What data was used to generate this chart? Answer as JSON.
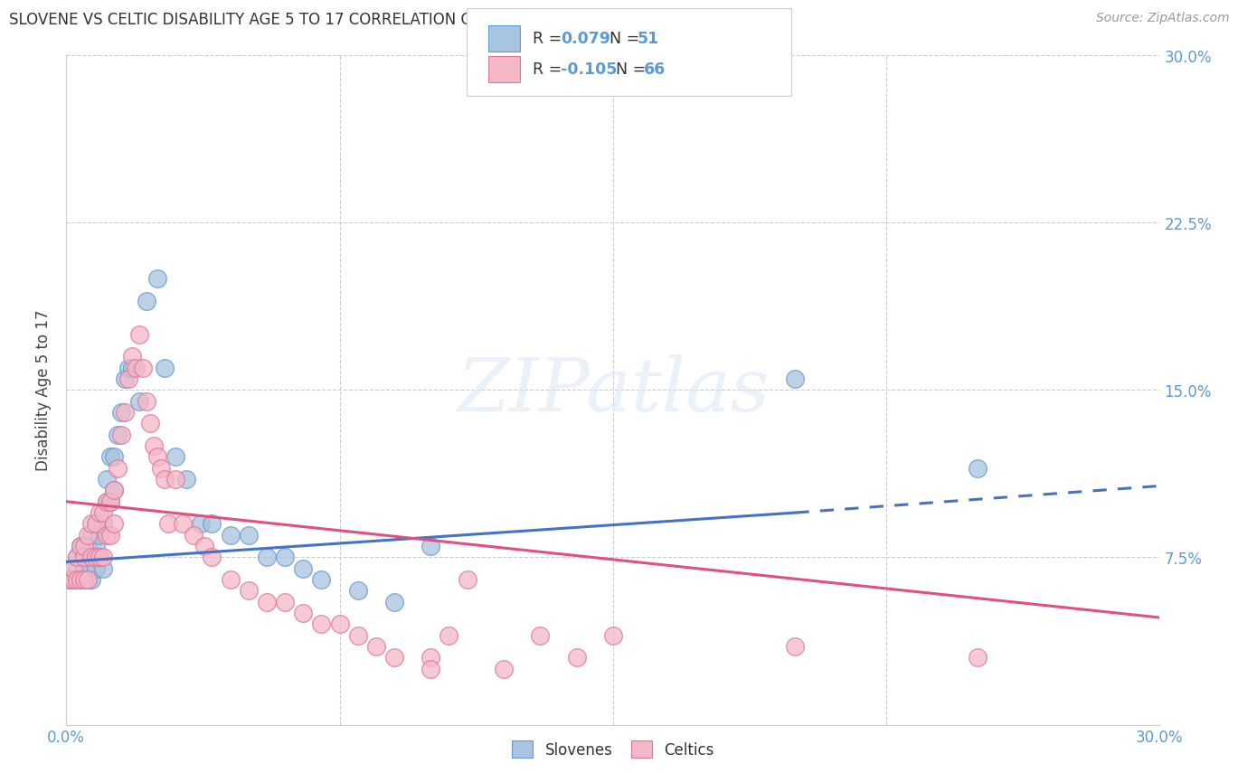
{
  "title": "SLOVENE VS CELTIC DISABILITY AGE 5 TO 17 CORRELATION CHART",
  "source": "Source: ZipAtlas.com",
  "ylabel": "Disability Age 5 to 17",
  "xlim": [
    0.0,
    0.3
  ],
  "ylim": [
    0.0,
    0.3
  ],
  "slovene_color": "#a8c4e0",
  "celtic_color": "#f4b8c8",
  "slovene_edge": "#6699cc",
  "celtic_edge": "#dd7799",
  "trend_slovene_color": "#4472c4",
  "trend_celtic_color": "#e05080",
  "tick_color": "#5b9bd5",
  "R_slovene": 0.079,
  "N_slovene": 51,
  "R_celtic": -0.105,
  "N_celtic": 66,
  "watermark": "ZIPatlas",
  "slovene_points_x": [
    0.001,
    0.002,
    0.003,
    0.003,
    0.004,
    0.004,
    0.005,
    0.005,
    0.005,
    0.006,
    0.006,
    0.007,
    0.007,
    0.007,
    0.008,
    0.008,
    0.008,
    0.009,
    0.009,
    0.01,
    0.01,
    0.011,
    0.011,
    0.012,
    0.012,
    0.013,
    0.013,
    0.014,
    0.015,
    0.016,
    0.017,
    0.018,
    0.02,
    0.022,
    0.025,
    0.027,
    0.03,
    0.033,
    0.037,
    0.04,
    0.045,
    0.05,
    0.055,
    0.06,
    0.065,
    0.07,
    0.08,
    0.09,
    0.1,
    0.2,
    0.25
  ],
  "slovene_points_y": [
    0.065,
    0.065,
    0.07,
    0.075,
    0.065,
    0.08,
    0.065,
    0.07,
    0.075,
    0.065,
    0.08,
    0.065,
    0.075,
    0.085,
    0.07,
    0.08,
    0.09,
    0.075,
    0.085,
    0.07,
    0.09,
    0.1,
    0.11,
    0.1,
    0.12,
    0.105,
    0.12,
    0.13,
    0.14,
    0.155,
    0.16,
    0.16,
    0.145,
    0.19,
    0.2,
    0.16,
    0.12,
    0.11,
    0.09,
    0.09,
    0.085,
    0.085,
    0.075,
    0.075,
    0.07,
    0.065,
    0.06,
    0.055,
    0.08,
    0.155,
    0.115
  ],
  "celtic_points_x": [
    0.001,
    0.002,
    0.002,
    0.003,
    0.003,
    0.004,
    0.004,
    0.005,
    0.005,
    0.005,
    0.006,
    0.006,
    0.007,
    0.007,
    0.008,
    0.008,
    0.009,
    0.009,
    0.01,
    0.01,
    0.011,
    0.011,
    0.012,
    0.012,
    0.013,
    0.013,
    0.014,
    0.015,
    0.016,
    0.017,
    0.018,
    0.019,
    0.02,
    0.021,
    0.022,
    0.023,
    0.024,
    0.025,
    0.026,
    0.027,
    0.028,
    0.03,
    0.032,
    0.035,
    0.038,
    0.04,
    0.045,
    0.05,
    0.055,
    0.06,
    0.065,
    0.07,
    0.075,
    0.08,
    0.085,
    0.09,
    0.1,
    0.105,
    0.11,
    0.12,
    0.13,
    0.14,
    0.25,
    0.2,
    0.15,
    0.1
  ],
  "celtic_points_y": [
    0.065,
    0.065,
    0.07,
    0.065,
    0.075,
    0.065,
    0.08,
    0.065,
    0.075,
    0.08,
    0.065,
    0.085,
    0.075,
    0.09,
    0.075,
    0.09,
    0.075,
    0.095,
    0.075,
    0.095,
    0.085,
    0.1,
    0.085,
    0.1,
    0.09,
    0.105,
    0.115,
    0.13,
    0.14,
    0.155,
    0.165,
    0.16,
    0.175,
    0.16,
    0.145,
    0.135,
    0.125,
    0.12,
    0.115,
    0.11,
    0.09,
    0.11,
    0.09,
    0.085,
    0.08,
    0.075,
    0.065,
    0.06,
    0.055,
    0.055,
    0.05,
    0.045,
    0.045,
    0.04,
    0.035,
    0.03,
    0.03,
    0.04,
    0.065,
    0.025,
    0.04,
    0.03,
    0.03,
    0.035,
    0.04,
    0.025
  ],
  "trend_s_x0": 0.0,
  "trend_s_y0": 0.073,
  "trend_s_x1": 0.2,
  "trend_s_y1": 0.095,
  "trend_s_x2": 0.3,
  "trend_s_y2": 0.107,
  "trend_c_x0": 0.0,
  "trend_c_y0": 0.1,
  "trend_c_x1": 0.3,
  "trend_c_y1": 0.048
}
